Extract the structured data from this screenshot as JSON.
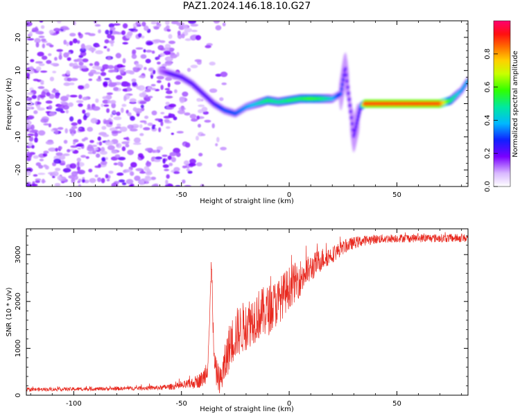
{
  "title": "PAZ1.2024.146.18.10.G27",
  "chart_data": [
    {
      "type": "heatmap",
      "xlabel": "Height of straight line (km)",
      "ylabel": "Frequency (Hz)",
      "xlim": [
        -122,
        83
      ],
      "ylim": [
        -25,
        25
      ],
      "xticks": [
        -100,
        -50,
        0,
        50
      ],
      "yticks": [
        -20,
        -10,
        0,
        10,
        20
      ],
      "colorbar": {
        "label": "Normalized spectral amplitude",
        "range": [
          0,
          1
        ],
        "ticks": [
          "0.0",
          "0.2",
          "0.4",
          "0.6",
          "0.8"
        ],
        "colormap": "rainbow"
      },
      "ridge": {
        "x": [
          -60,
          -55,
          -50,
          -45,
          -40,
          -35,
          -30,
          -25,
          -20,
          -15,
          -10,
          -5,
          0,
          5,
          10,
          15,
          20,
          24,
          26,
          30,
          33,
          35,
          40,
          50,
          60,
          70,
          75,
          80,
          83
        ],
        "y": [
          10,
          9,
          8,
          6,
          3,
          0,
          -2,
          -3,
          -1,
          0,
          1,
          0.5,
          1,
          1.5,
          1.5,
          1.5,
          1.5,
          3,
          11,
          -10,
          -1,
          0,
          0,
          0,
          0,
          0,
          1,
          4,
          7
        ],
        "amplitude": [
          0.2,
          0.3,
          0.3,
          0.3,
          0.3,
          0.3,
          0.4,
          0.4,
          0.45,
          0.5,
          0.6,
          0.55,
          0.6,
          0.6,
          0.65,
          0.6,
          0.5,
          0.35,
          0.25,
          0.25,
          0.3,
          0.95,
          0.95,
          0.95,
          0.95,
          0.95,
          0.6,
          0.45,
          0.45
        ]
      }
    },
    {
      "type": "line",
      "xlabel": "Height of straight line (km)",
      "ylabel": "SNR (10 * v/v)",
      "xlim": [
        -122,
        83
      ],
      "ylim": [
        0,
        3550
      ],
      "xticks": [
        -100,
        -50,
        0,
        50
      ],
      "yticks": [
        0,
        1000,
        2000,
        3000
      ],
      "color": "#e8281e",
      "envelope": {
        "x": [
          -122,
          -100,
          -80,
          -60,
          -50,
          -45,
          -40,
          -38,
          -37,
          -36,
          -35,
          -34,
          -33,
          -32,
          -30,
          -28,
          -25,
          -20,
          -15,
          -10,
          -5,
          0,
          5,
          10,
          15,
          20,
          25,
          30,
          35,
          40,
          50,
          60,
          70,
          83
        ],
        "y": [
          120,
          130,
          140,
          160,
          200,
          250,
          350,
          600,
          1500,
          2900,
          800,
          500,
          400,
          300,
          600,
          1000,
          1300,
          1500,
          1700,
          1800,
          2000,
          2300,
          2500,
          2700,
          2900,
          3000,
          3150,
          3250,
          3300,
          3330,
          3350,
          3350,
          3350,
          3350
        ]
      },
      "noise_amplitude": [
        40,
        40,
        40,
        50,
        80,
        120,
        180,
        300,
        300,
        200,
        300,
        300,
        300,
        300,
        450,
        500,
        550,
        550,
        550,
        550,
        500,
        450,
        400,
        300,
        250,
        180,
        150,
        130,
        110,
        100,
        90,
        90,
        90,
        90
      ]
    }
  ]
}
